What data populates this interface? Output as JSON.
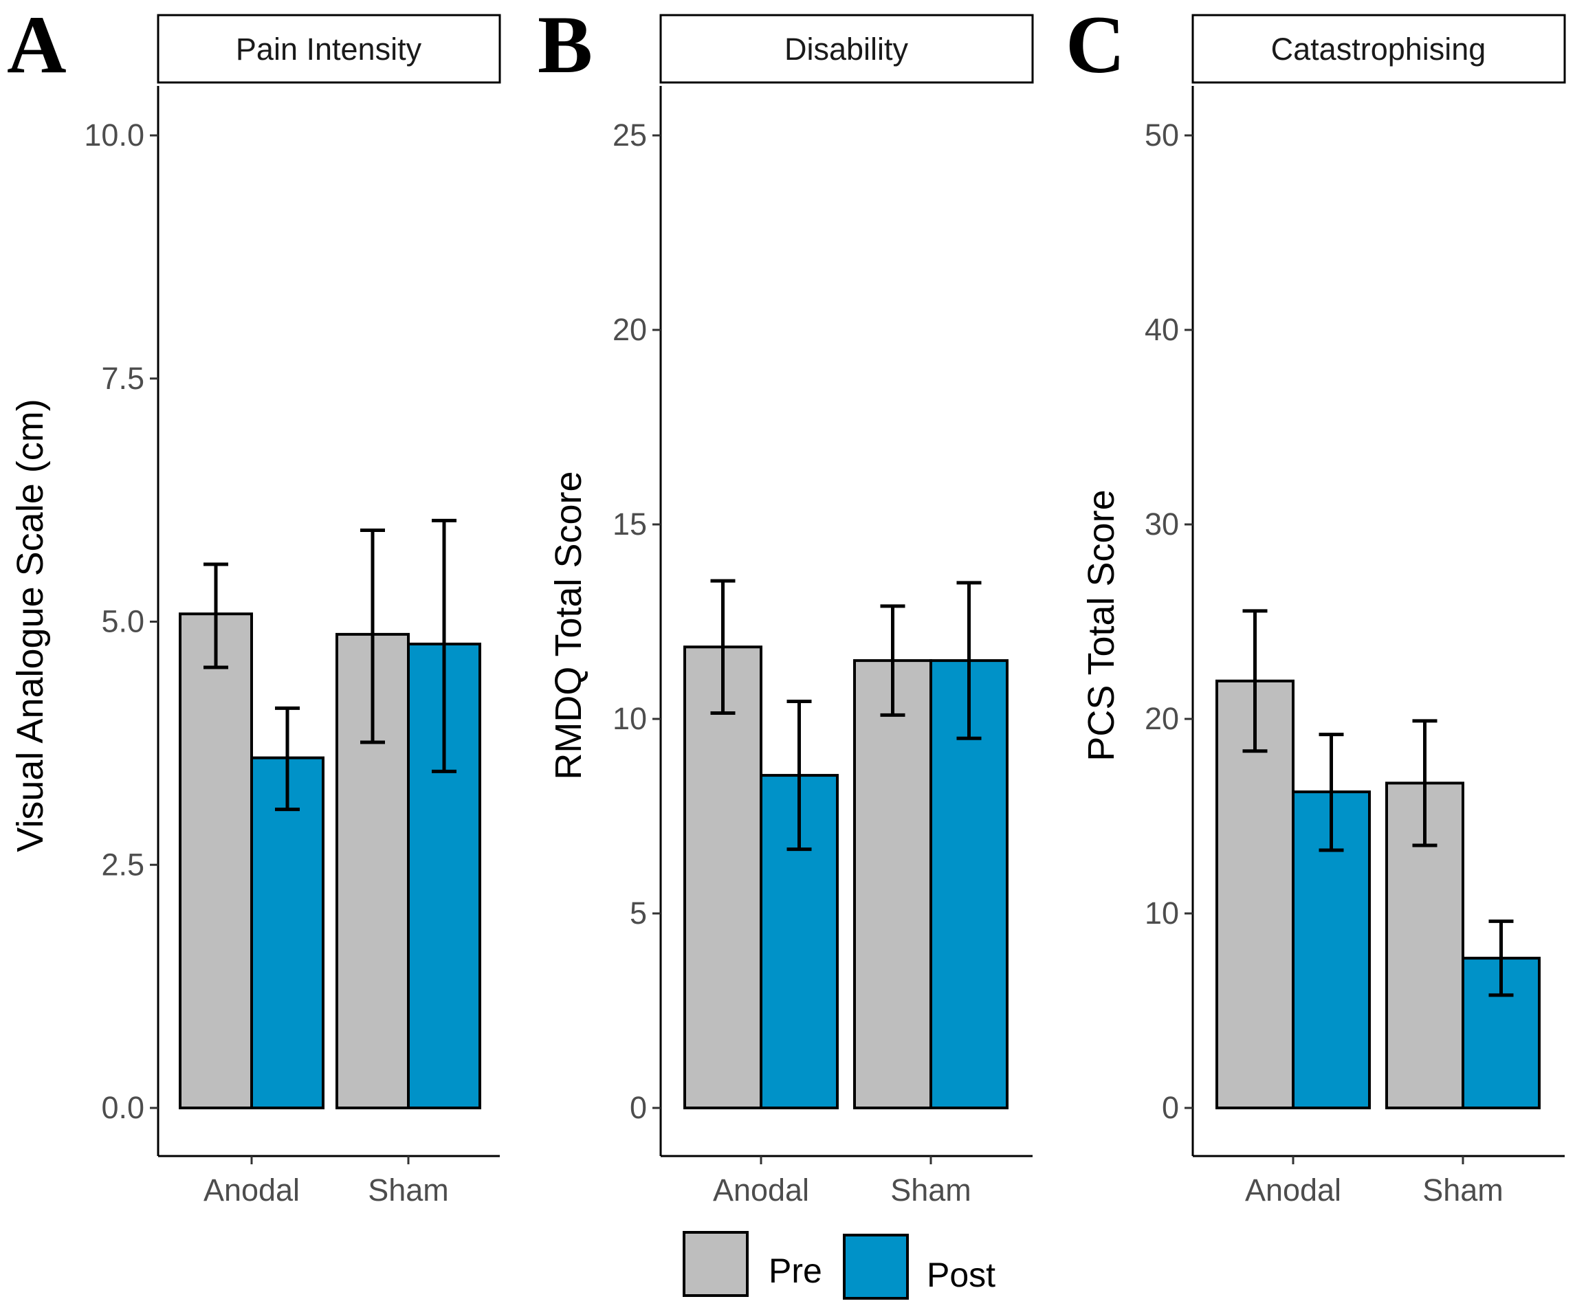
{
  "chart_data": [
    {
      "type": "bar",
      "panel_letter": "A",
      "title": "Pain Intensity",
      "xlabel": "",
      "ylabel": "Visual Analogue Scale (cm)",
      "categories": [
        "Anodal",
        "Sham"
      ],
      "ylim": [
        -0.5,
        10.5
      ],
      "yticks": [
        0.0,
        2.5,
        5.0,
        7.5,
        10.0
      ],
      "ytick_labels": [
        "0.0",
        "2.5",
        "5.0",
        "7.5",
        "10.0"
      ],
      "series": [
        {
          "name": "Pre",
          "color": "#bebebe",
          "values": [
            5.08,
            4.87
          ],
          "err_low": [
            4.53,
            3.76
          ],
          "err_high": [
            5.59,
            5.94
          ]
        },
        {
          "name": "Post",
          "color": "#0092c8",
          "values": [
            3.6,
            4.77
          ],
          "err_low": [
            3.07,
            3.46
          ],
          "err_high": [
            4.11,
            6.04
          ]
        }
      ]
    },
    {
      "type": "bar",
      "panel_letter": "B",
      "title": "Disability",
      "xlabel": "",
      "ylabel": "RMDQ Total Score",
      "categories": [
        "Anodal",
        "Sham"
      ],
      "ylim": [
        -1.25,
        26.25
      ],
      "yticks": [
        0,
        5,
        10,
        15,
        20,
        25
      ],
      "ytick_labels": [
        "0",
        "5",
        "10",
        "15",
        "20",
        "25"
      ],
      "series": [
        {
          "name": "Pre",
          "color": "#bebebe",
          "values": [
            11.85,
            11.5
          ],
          "err_low": [
            10.15,
            10.1
          ],
          "err_high": [
            13.55,
            12.9
          ]
        },
        {
          "name": "Post",
          "color": "#0092c8",
          "values": [
            8.55,
            11.5
          ],
          "err_low": [
            6.65,
            9.5
          ],
          "err_high": [
            10.45,
            13.5
          ]
        }
      ]
    },
    {
      "type": "bar",
      "panel_letter": "C",
      "title": "Catastrophising",
      "xlabel": "",
      "ylabel": "PCS Total Score",
      "categories": [
        "Anodal",
        "Sham"
      ],
      "ylim": [
        -2.5,
        52.5
      ],
      "yticks": [
        0,
        10,
        20,
        30,
        40,
        50
      ],
      "ytick_labels": [
        "0",
        "10",
        "20",
        "30",
        "40",
        "50"
      ],
      "series": [
        {
          "name": "Pre",
          "color": "#bebebe",
          "values": [
            21.95,
            16.7
          ],
          "err_low": [
            18.35,
            13.5
          ],
          "err_high": [
            25.55,
            19.9
          ]
        },
        {
          "name": "Post",
          "color": "#0092c8",
          "values": [
            16.25,
            7.7
          ],
          "err_low": [
            13.25,
            5.8
          ],
          "err_high": [
            19.2,
            9.6
          ]
        }
      ]
    }
  ],
  "legend": {
    "items": [
      {
        "label": "Pre",
        "color": "#bebebe"
      },
      {
        "label": "Post",
        "color": "#0092c8"
      }
    ]
  }
}
